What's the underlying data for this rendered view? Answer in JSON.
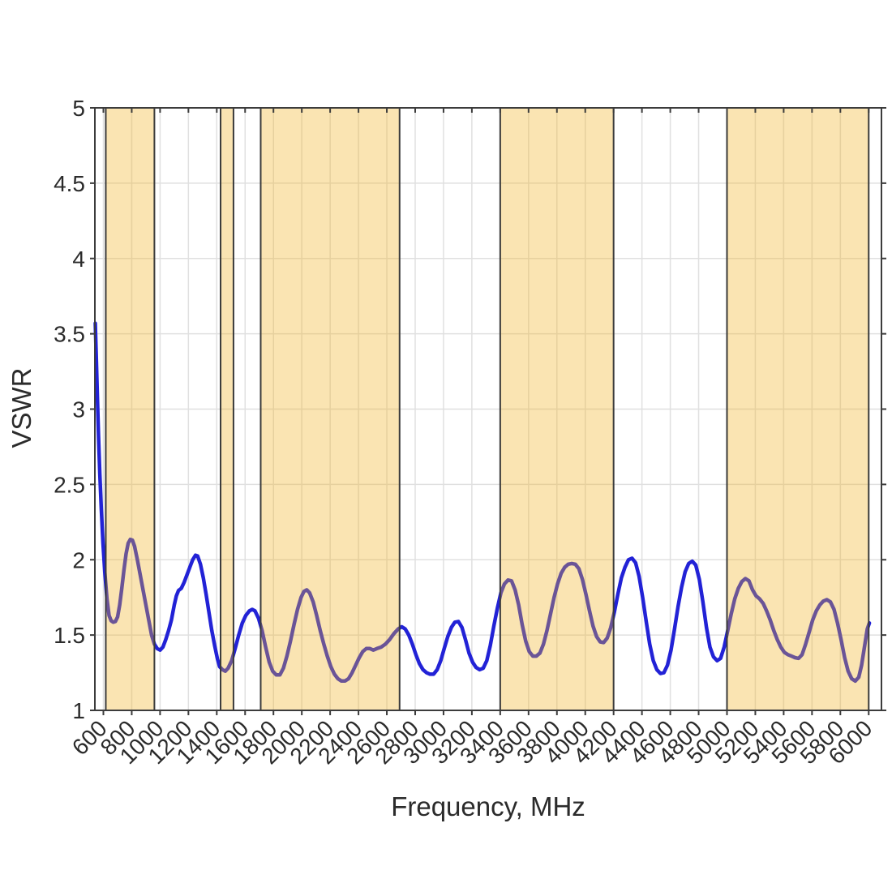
{
  "chart_data": {
    "type": "line",
    "title": "",
    "xlabel": "Frequency, MHz",
    "ylabel": "VSWR",
    "xlim": [
      540,
      6090
    ],
    "ylim": [
      1,
      5
    ],
    "grid": true,
    "legend": "none",
    "x_ticks": [
      600,
      800,
      1000,
      1200,
      1400,
      1600,
      1800,
      2000,
      2200,
      2400,
      2600,
      2800,
      3000,
      3200,
      3400,
      3600,
      3800,
      4000,
      4200,
      4400,
      4600,
      4800,
      5000,
      5200,
      5400,
      5600,
      5800,
      6000
    ],
    "x_tick_labels": [
      "600",
      "800",
      "1000",
      "1200",
      "1400",
      "1600",
      "1800",
      "2000",
      "2200",
      "2400",
      "2600",
      "2800",
      "3000",
      "3200",
      "3400",
      "3600",
      "3800",
      "4000",
      "4200",
      "4400",
      "4600",
      "4800",
      "5000",
      "5200",
      "5400",
      "5600",
      "5800",
      "6000"
    ],
    "y_ticks": [
      1,
      1.5,
      2,
      2.5,
      3,
      3.5,
      4,
      4.5,
      5
    ],
    "y_tick_labels": [
      "1",
      "1.5",
      "2",
      "2.5",
      "3",
      "3.5",
      "4",
      "4.5",
      "5"
    ],
    "highlight_bands": {
      "ranges_mhz": [
        [
          617,
          960
        ],
        [
          1427,
          1518
        ],
        [
          1710,
          2690
        ],
        [
          3400,
          4200
        ],
        [
          5000,
          6000
        ]
      ],
      "fill_color": "#F0B223",
      "fill_opacity": 0.35,
      "border_color": "#3B3B3B"
    },
    "colors": {
      "line": "#2222D6",
      "grid": "#E0E0E0",
      "axis": "#3C3C3C",
      "text": "#2B2B2B",
      "background": "#FFFFFF"
    },
    "series": [
      {
        "name": "VSWR",
        "points": [
          [
            543,
            3.57
          ],
          [
            550,
            3.35
          ],
          [
            558,
            3.08
          ],
          [
            566,
            2.82
          ],
          [
            575,
            2.57
          ],
          [
            585,
            2.34
          ],
          [
            597,
            2.11
          ],
          [
            610,
            1.92
          ],
          [
            625,
            1.74
          ],
          [
            640,
            1.63
          ],
          [
            655,
            1.595
          ],
          [
            670,
            1.585
          ],
          [
            685,
            1.59
          ],
          [
            700,
            1.62
          ],
          [
            715,
            1.7
          ],
          [
            730,
            1.81
          ],
          [
            745,
            1.93
          ],
          [
            760,
            2.04
          ],
          [
            775,
            2.11
          ],
          [
            790,
            2.135
          ],
          [
            805,
            2.13
          ],
          [
            820,
            2.09
          ],
          [
            840,
            2.0
          ],
          [
            860,
            1.9
          ],
          [
            880,
            1.8
          ],
          [
            900,
            1.7
          ],
          [
            920,
            1.6
          ],
          [
            940,
            1.5
          ],
          [
            960,
            1.44
          ],
          [
            980,
            1.41
          ],
          [
            1000,
            1.4
          ],
          [
            1020,
            1.42
          ],
          [
            1040,
            1.47
          ],
          [
            1060,
            1.53
          ],
          [
            1080,
            1.6
          ],
          [
            1100,
            1.7
          ],
          [
            1115,
            1.76
          ],
          [
            1130,
            1.795
          ],
          [
            1150,
            1.81
          ],
          [
            1170,
            1.85
          ],
          [
            1190,
            1.9
          ],
          [
            1210,
            1.95
          ],
          [
            1230,
            2.0
          ],
          [
            1250,
            2.03
          ],
          [
            1265,
            2.025
          ],
          [
            1285,
            1.97
          ],
          [
            1305,
            1.88
          ],
          [
            1325,
            1.77
          ],
          [
            1345,
            1.65
          ],
          [
            1365,
            1.53
          ],
          [
            1385,
            1.43
          ],
          [
            1405,
            1.34
          ],
          [
            1420,
            1.29
          ],
          [
            1440,
            1.27
          ],
          [
            1460,
            1.26
          ],
          [
            1480,
            1.28
          ],
          [
            1505,
            1.33
          ],
          [
            1530,
            1.41
          ],
          [
            1555,
            1.5
          ],
          [
            1580,
            1.58
          ],
          [
            1605,
            1.63
          ],
          [
            1630,
            1.66
          ],
          [
            1650,
            1.67
          ],
          [
            1670,
            1.66
          ],
          [
            1695,
            1.61
          ],
          [
            1720,
            1.53
          ],
          [
            1745,
            1.42
          ],
          [
            1770,
            1.32
          ],
          [
            1795,
            1.26
          ],
          [
            1820,
            1.235
          ],
          [
            1845,
            1.235
          ],
          [
            1870,
            1.28
          ],
          [
            1895,
            1.36
          ],
          [
            1920,
            1.46
          ],
          [
            1945,
            1.57
          ],
          [
            1970,
            1.67
          ],
          [
            1995,
            1.75
          ],
          [
            2015,
            1.79
          ],
          [
            2035,
            1.8
          ],
          [
            2055,
            1.78
          ],
          [
            2080,
            1.72
          ],
          [
            2105,
            1.63
          ],
          [
            2130,
            1.53
          ],
          [
            2155,
            1.44
          ],
          [
            2180,
            1.36
          ],
          [
            2205,
            1.29
          ],
          [
            2230,
            1.24
          ],
          [
            2255,
            1.21
          ],
          [
            2280,
            1.195
          ],
          [
            2305,
            1.195
          ],
          [
            2330,
            1.21
          ],
          [
            2355,
            1.25
          ],
          [
            2380,
            1.3
          ],
          [
            2405,
            1.35
          ],
          [
            2430,
            1.39
          ],
          [
            2455,
            1.41
          ],
          [
            2480,
            1.41
          ],
          [
            2505,
            1.4
          ],
          [
            2530,
            1.41
          ],
          [
            2560,
            1.42
          ],
          [
            2590,
            1.44
          ],
          [
            2620,
            1.47
          ],
          [
            2650,
            1.51
          ],
          [
            2680,
            1.54
          ],
          [
            2705,
            1.555
          ],
          [
            2730,
            1.54
          ],
          [
            2755,
            1.5
          ],
          [
            2780,
            1.44
          ],
          [
            2805,
            1.37
          ],
          [
            2830,
            1.31
          ],
          [
            2855,
            1.27
          ],
          [
            2880,
            1.25
          ],
          [
            2905,
            1.24
          ],
          [
            2930,
            1.24
          ],
          [
            2955,
            1.27
          ],
          [
            2980,
            1.33
          ],
          [
            3005,
            1.41
          ],
          [
            3030,
            1.49
          ],
          [
            3055,
            1.55
          ],
          [
            3080,
            1.585
          ],
          [
            3105,
            1.59
          ],
          [
            3130,
            1.55
          ],
          [
            3155,
            1.47
          ],
          [
            3180,
            1.38
          ],
          [
            3205,
            1.32
          ],
          [
            3230,
            1.285
          ],
          [
            3255,
            1.27
          ],
          [
            3280,
            1.28
          ],
          [
            3305,
            1.33
          ],
          [
            3330,
            1.43
          ],
          [
            3355,
            1.56
          ],
          [
            3380,
            1.68
          ],
          [
            3405,
            1.78
          ],
          [
            3430,
            1.84
          ],
          [
            3455,
            1.865
          ],
          [
            3480,
            1.86
          ],
          [
            3505,
            1.8
          ],
          [
            3530,
            1.7
          ],
          [
            3555,
            1.57
          ],
          [
            3580,
            1.46
          ],
          [
            3605,
            1.39
          ],
          [
            3630,
            1.36
          ],
          [
            3655,
            1.36
          ],
          [
            3680,
            1.38
          ],
          [
            3705,
            1.44
          ],
          [
            3730,
            1.53
          ],
          [
            3755,
            1.64
          ],
          [
            3780,
            1.75
          ],
          [
            3805,
            1.84
          ],
          [
            3830,
            1.91
          ],
          [
            3855,
            1.95
          ],
          [
            3880,
            1.97
          ],
          [
            3905,
            1.975
          ],
          [
            3930,
            1.97
          ],
          [
            3955,
            1.94
          ],
          [
            3980,
            1.87
          ],
          [
            4005,
            1.77
          ],
          [
            4030,
            1.66
          ],
          [
            4055,
            1.56
          ],
          [
            4080,
            1.49
          ],
          [
            4105,
            1.455
          ],
          [
            4130,
            1.45
          ],
          [
            4155,
            1.48
          ],
          [
            4180,
            1.55
          ],
          [
            4205,
            1.65
          ],
          [
            4230,
            1.77
          ],
          [
            4255,
            1.88
          ],
          [
            4280,
            1.95
          ],
          [
            4305,
            2.0
          ],
          [
            4330,
            2.01
          ],
          [
            4355,
            1.98
          ],
          [
            4380,
            1.89
          ],
          [
            4405,
            1.75
          ],
          [
            4430,
            1.59
          ],
          [
            4455,
            1.44
          ],
          [
            4480,
            1.33
          ],
          [
            4505,
            1.27
          ],
          [
            4530,
            1.245
          ],
          [
            4555,
            1.25
          ],
          [
            4580,
            1.3
          ],
          [
            4605,
            1.4
          ],
          [
            4630,
            1.54
          ],
          [
            4655,
            1.69
          ],
          [
            4680,
            1.82
          ],
          [
            4705,
            1.92
          ],
          [
            4730,
            1.975
          ],
          [
            4755,
            1.99
          ],
          [
            4780,
            1.965
          ],
          [
            4805,
            1.87
          ],
          [
            4830,
            1.72
          ],
          [
            4855,
            1.55
          ],
          [
            4880,
            1.42
          ],
          [
            4905,
            1.355
          ],
          [
            4930,
            1.33
          ],
          [
            4955,
            1.345
          ],
          [
            4980,
            1.42
          ],
          [
            5005,
            1.53
          ],
          [
            5030,
            1.64
          ],
          [
            5055,
            1.74
          ],
          [
            5080,
            1.81
          ],
          [
            5105,
            1.855
          ],
          [
            5130,
            1.875
          ],
          [
            5155,
            1.86
          ],
          [
            5180,
            1.8
          ],
          [
            5205,
            1.76
          ],
          [
            5230,
            1.74
          ],
          [
            5255,
            1.71
          ],
          [
            5280,
            1.66
          ],
          [
            5305,
            1.6
          ],
          [
            5330,
            1.53
          ],
          [
            5355,
            1.47
          ],
          [
            5380,
            1.42
          ],
          [
            5405,
            1.385
          ],
          [
            5430,
            1.37
          ],
          [
            5455,
            1.36
          ],
          [
            5480,
            1.35
          ],
          [
            5505,
            1.345
          ],
          [
            5530,
            1.37
          ],
          [
            5555,
            1.44
          ],
          [
            5580,
            1.52
          ],
          [
            5605,
            1.6
          ],
          [
            5630,
            1.66
          ],
          [
            5655,
            1.7
          ],
          [
            5680,
            1.725
          ],
          [
            5705,
            1.735
          ],
          [
            5730,
            1.72
          ],
          [
            5755,
            1.67
          ],
          [
            5780,
            1.58
          ],
          [
            5805,
            1.47
          ],
          [
            5830,
            1.35
          ],
          [
            5855,
            1.26
          ],
          [
            5880,
            1.21
          ],
          [
            5905,
            1.195
          ],
          [
            5930,
            1.22
          ],
          [
            5950,
            1.3
          ],
          [
            5970,
            1.42
          ],
          [
            5990,
            1.54
          ],
          [
            6005,
            1.58
          ]
        ]
      }
    ]
  }
}
